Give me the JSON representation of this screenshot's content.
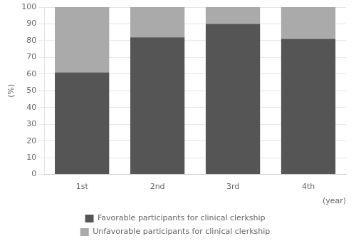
{
  "chart_data": {
    "type": "bar",
    "stacked": true,
    "categories": [
      "1st",
      "2nd",
      "3rd",
      "4th"
    ],
    "series": [
      {
        "name": "Favorable participants for clinical clerkship",
        "color": "#555555",
        "values": [
          61,
          82,
          90,
          81
        ]
      },
      {
        "name": "Unfavorable participants for clinical clerkship",
        "color": "#aaaaaa",
        "values": [
          39,
          18,
          10,
          19
        ]
      }
    ],
    "ylabel": "(%)",
    "xlabel": "(year)",
    "ylim": [
      0,
      100
    ],
    "yticks": [
      0,
      10,
      20,
      30,
      40,
      50,
      60,
      70,
      80,
      90,
      100
    ],
    "grid": true,
    "legend": "bottom"
  }
}
